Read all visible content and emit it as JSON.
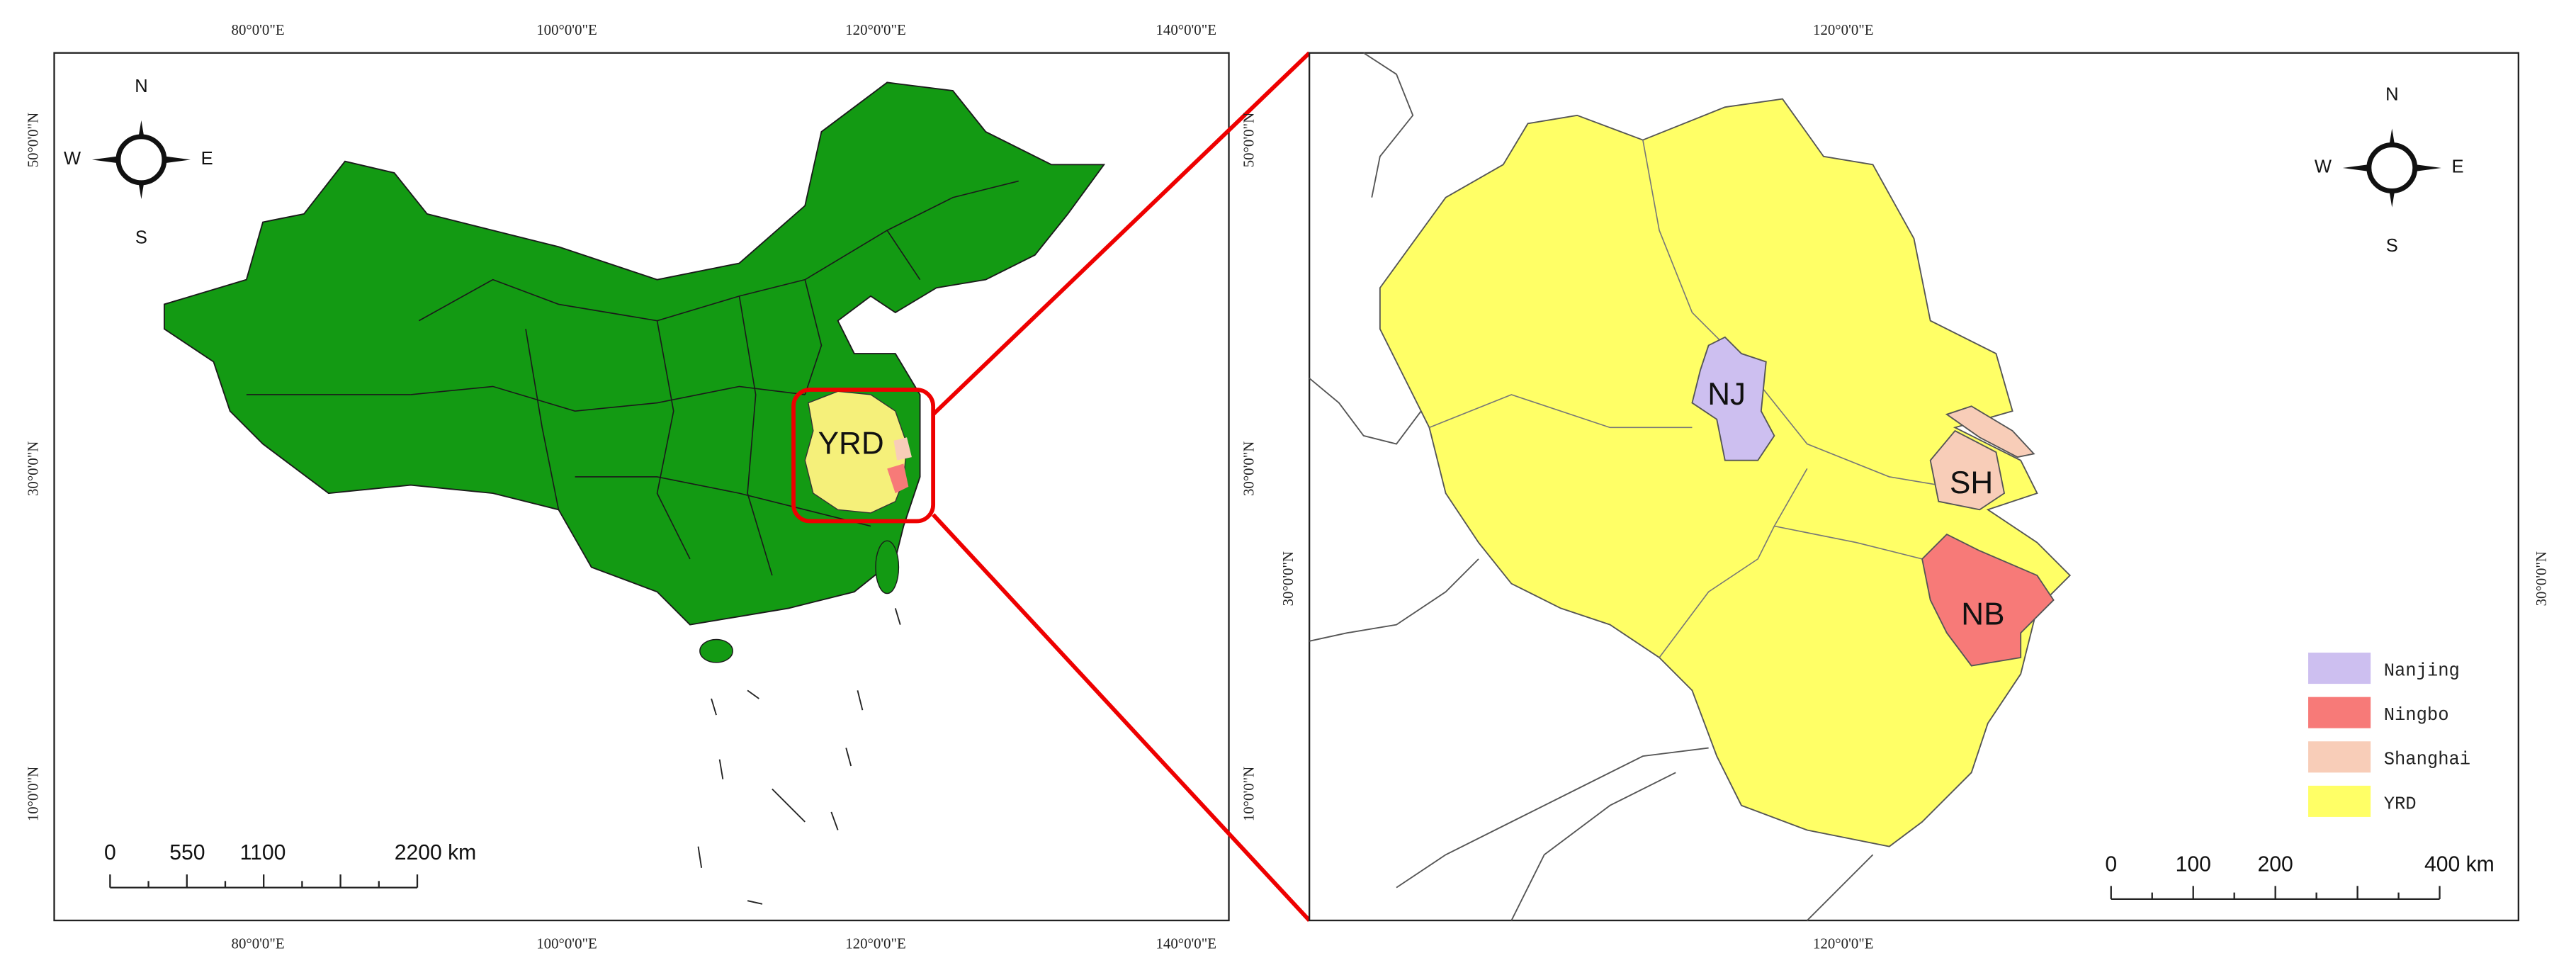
{
  "left_map": {
    "graticule": {
      "top": [
        "80°0'0\"E",
        "100°0'0\"E",
        "120°0'0\"E",
        "140°0'0\"E"
      ],
      "bottom": [
        "80°0'0\"E",
        "100°0'0\"E",
        "120°0'0\"E",
        "140°0'0\"E"
      ],
      "left": [
        "50°0'0\"N",
        "30°0'0\"N",
        "10°0'0\"N"
      ],
      "right": [
        "50°0'0\"N",
        "30°0'0\"N",
        "10°0'0\"N"
      ]
    },
    "compass": {
      "n": "N",
      "s": "S",
      "e": "E",
      "w": "W"
    },
    "region_label": "YRD",
    "scale_bar": [
      "0",
      "550",
      "1100",
      "2200 km"
    ]
  },
  "right_map": {
    "graticule": {
      "top": [
        "120°0'0\"E"
      ],
      "bottom": [
        "120°0'0\"E"
      ],
      "left": [
        "30°0'0\"N"
      ],
      "right": [
        "30°0'0\"N"
      ]
    },
    "compass": {
      "n": "N",
      "s": "S",
      "e": "E",
      "w": "W"
    },
    "region_labels": [
      "NJ",
      "SH",
      "NB"
    ],
    "scale_bar": [
      "0",
      "100",
      "200",
      "400 km"
    ],
    "legend": [
      {
        "label": "Nanjing",
        "color": "#cdbff0"
      },
      {
        "label": "Ningbo",
        "color": "#f77a78"
      },
      {
        "label": "Shanghai",
        "color": "#f8cdb8"
      },
      {
        "label": "YRD",
        "color": "#ffff66"
      }
    ]
  }
}
